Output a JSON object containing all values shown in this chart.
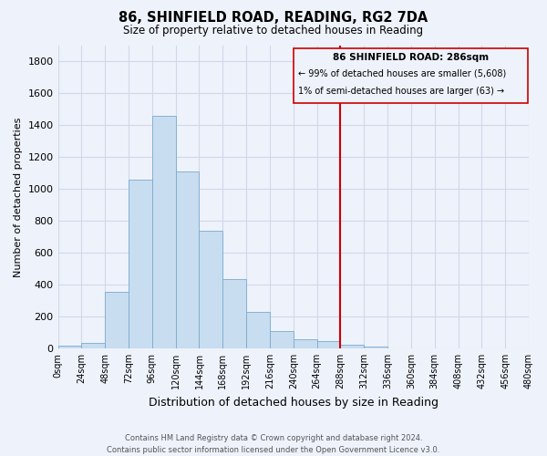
{
  "title": "86, SHINFIELD ROAD, READING, RG2 7DA",
  "subtitle": "Size of property relative to detached houses in Reading",
  "xlabel": "Distribution of detached houses by size in Reading",
  "ylabel": "Number of detached properties",
  "bar_color": "#c8ddf0",
  "bar_edge_color": "#7aaace",
  "vline_x": 288,
  "vline_color": "#cc0000",
  "bin_edges": [
    0,
    24,
    48,
    72,
    96,
    120,
    144,
    168,
    192,
    216,
    240,
    264,
    288,
    312,
    336,
    360,
    384,
    408,
    432,
    456,
    480
  ],
  "bar_heights": [
    15,
    35,
    355,
    1060,
    1460,
    1110,
    740,
    435,
    230,
    110,
    55,
    48,
    22,
    10,
    3,
    1,
    0,
    0,
    0,
    0
  ],
  "ylim": [
    0,
    1900
  ],
  "yticks": [
    0,
    200,
    400,
    600,
    800,
    1000,
    1200,
    1400,
    1600,
    1800
  ],
  "xtick_labels": [
    "0sqm",
    "24sqm",
    "48sqm",
    "72sqm",
    "96sqm",
    "120sqm",
    "144sqm",
    "168sqm",
    "192sqm",
    "216sqm",
    "240sqm",
    "264sqm",
    "288sqm",
    "312sqm",
    "336sqm",
    "360sqm",
    "384sqm",
    "408sqm",
    "432sqm",
    "456sqm",
    "480sqm"
  ],
  "box_text_line1": "86 SHINFIELD ROAD: 286sqm",
  "box_text_line2": "← 99% of detached houses are smaller (5,608)",
  "box_text_line3": "1% of semi-detached houses are larger (63) →",
  "footer_line1": "Contains HM Land Registry data © Crown copyright and database right 2024.",
  "footer_line2": "Contains public sector information licensed under the Open Government Licence v3.0.",
  "bg_color": "#eef2fb",
  "plot_bg_color": "#eef2fb",
  "grid_color": "#d0d8e8",
  "box_border_color": "#cc0000",
  "box_face_color": "#eef2fb"
}
